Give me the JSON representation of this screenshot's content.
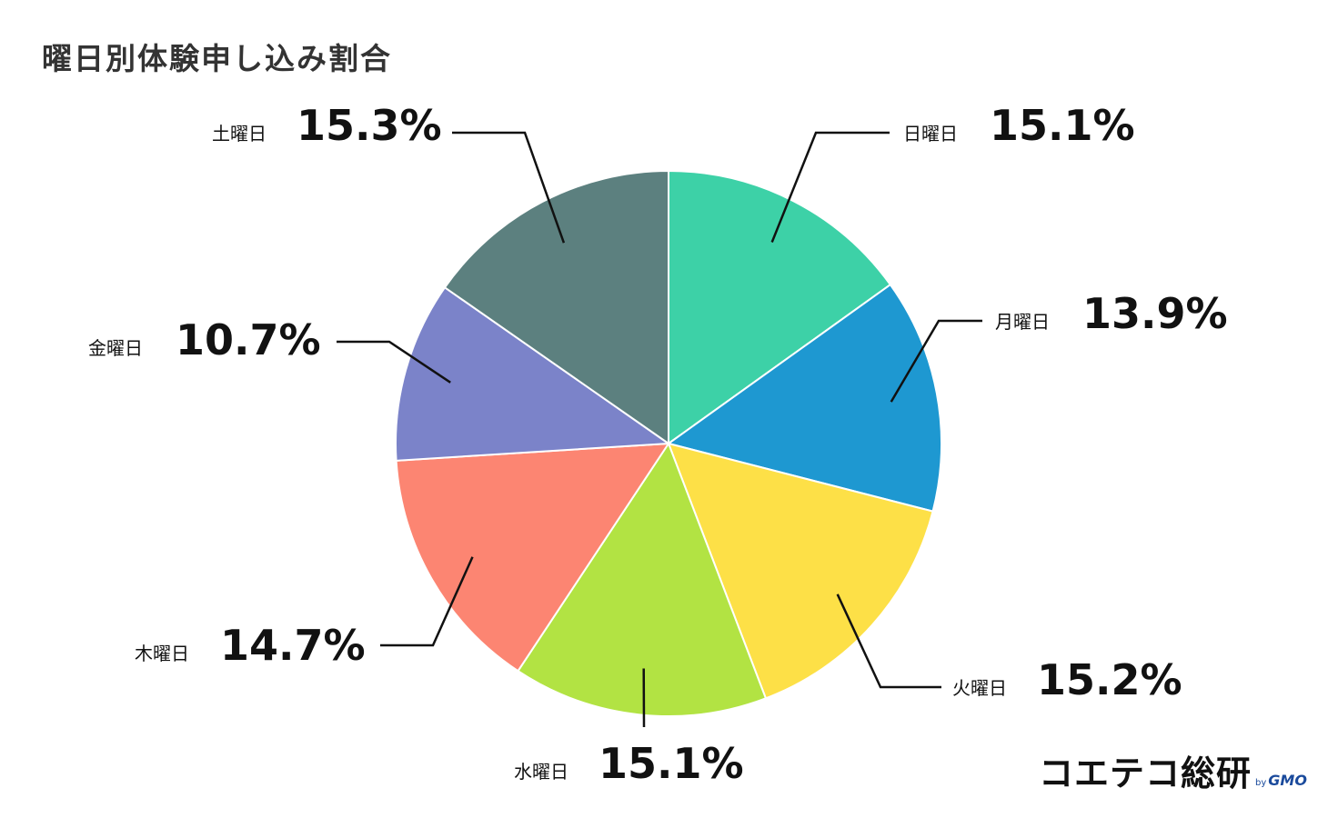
{
  "title": "曜日別体験申し込み割合",
  "brand": {
    "name": "コエテコ総研",
    "by": "by",
    "gmo": "GMO"
  },
  "chart_data": {
    "type": "pie",
    "title": "曜日別体験申し込み割合",
    "slices": [
      {
        "label": "日曜日",
        "value": 15.1,
        "display": "15.1%",
        "color": "#3DD1A7"
      },
      {
        "label": "月曜日",
        "value": 13.9,
        "display": "13.9%",
        "color": "#1E98D1"
      },
      {
        "label": "火曜日",
        "value": 15.2,
        "display": "15.2%",
        "color": "#FDE047"
      },
      {
        "label": "水曜日",
        "value": 15.1,
        "display": "15.1%",
        "color": "#B2E343"
      },
      {
        "label": "木曜日",
        "value": 14.7,
        "display": "14.7%",
        "color": "#FC8572"
      },
      {
        "label": "金曜日",
        "value": 10.7,
        "display": "10.7%",
        "color": "#7B83C9"
      },
      {
        "label": "土曜日",
        "value": 15.3,
        "display": "15.3%",
        "color": "#5C807F"
      }
    ]
  }
}
